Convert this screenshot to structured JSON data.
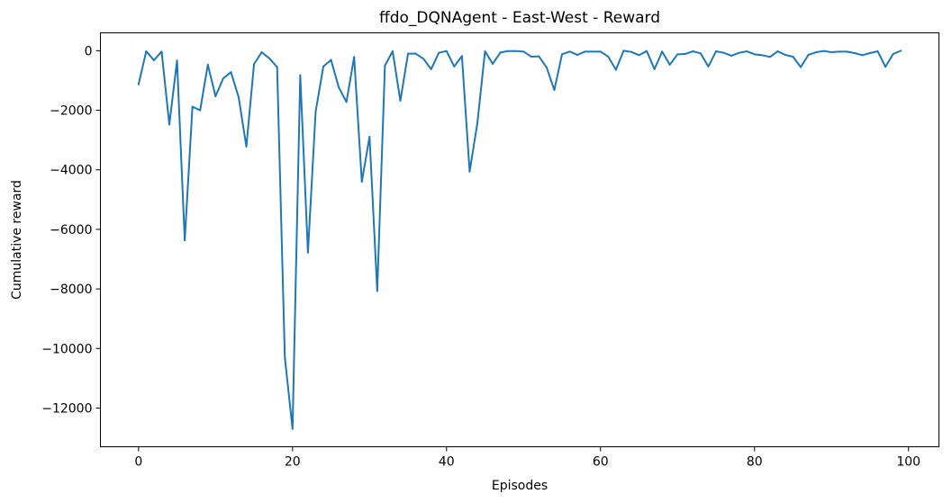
{
  "chart_data": {
    "type": "line",
    "title": "ffdo_DQNAgent - East-West - Reward",
    "xlabel": "Episodes",
    "ylabel": "Cumulative reward",
    "xlim": [
      -4.95,
      103.95
    ],
    "ylim": [
      -13300,
      600
    ],
    "xticks": [
      0,
      20,
      40,
      60,
      80,
      100
    ],
    "yticks": [
      0,
      -2000,
      -4000,
      -6000,
      -8000,
      -10000,
      -12000
    ],
    "xtick_labels": [
      "0",
      "20",
      "40",
      "60",
      "80",
      "100"
    ],
    "ytick_labels": [
      "0",
      "−2000",
      "−4000",
      "−6000",
      "−8000",
      "−10000",
      "−12000"
    ],
    "grid": false,
    "series": [
      {
        "color": "#1f77b4",
        "x": [
          0,
          1,
          2,
          3,
          4,
          5,
          6,
          7,
          8,
          9,
          10,
          11,
          12,
          13,
          14,
          15,
          16,
          17,
          18,
          19,
          20,
          21,
          22,
          23,
          24,
          25,
          26,
          27,
          28,
          29,
          30,
          31,
          32,
          33,
          34,
          35,
          36,
          37,
          38,
          39,
          40,
          41,
          42,
          43,
          44,
          45,
          46,
          47,
          48,
          49,
          50,
          51,
          52,
          53,
          54,
          55,
          56,
          57,
          58,
          59,
          60,
          61,
          62,
          63,
          64,
          65,
          66,
          67,
          68,
          69,
          70,
          71,
          72,
          73,
          74,
          75,
          76,
          77,
          78,
          79,
          80,
          81,
          82,
          83,
          84,
          85,
          86,
          87,
          88,
          89,
          90,
          91,
          92,
          93,
          94,
          95,
          96,
          97,
          98,
          99
        ],
        "values": [
          -1130,
          -20,
          -320,
          -30,
          -2480,
          -330,
          -6370,
          -1880,
          -2000,
          -470,
          -1530,
          -930,
          -720,
          -1560,
          -3220,
          -450,
          -50,
          -260,
          -550,
          -10300,
          -12700,
          -820,
          -6780,
          -2050,
          -530,
          -310,
          -1230,
          -1720,
          -210,
          -4400,
          -2890,
          -8070,
          -500,
          -20,
          -1680,
          -100,
          -100,
          -270,
          -620,
          -70,
          -10,
          -530,
          -180,
          -4060,
          -2440,
          -20,
          -440,
          -60,
          -10,
          -10,
          -30,
          -200,
          -190,
          -560,
          -1320,
          -120,
          -30,
          -140,
          -30,
          -30,
          -30,
          -200,
          -640,
          0,
          -40,
          -150,
          -10,
          -620,
          -30,
          -470,
          -120,
          -110,
          -20,
          -90,
          -530,
          -20,
          -70,
          -170,
          -70,
          -20,
          -120,
          -150,
          -210,
          -20,
          -140,
          -200,
          -550,
          -140,
          -50,
          -10,
          -50,
          -30,
          -30,
          -80,
          -150,
          -80,
          -20,
          -540,
          -110,
          0
        ]
      }
    ]
  }
}
